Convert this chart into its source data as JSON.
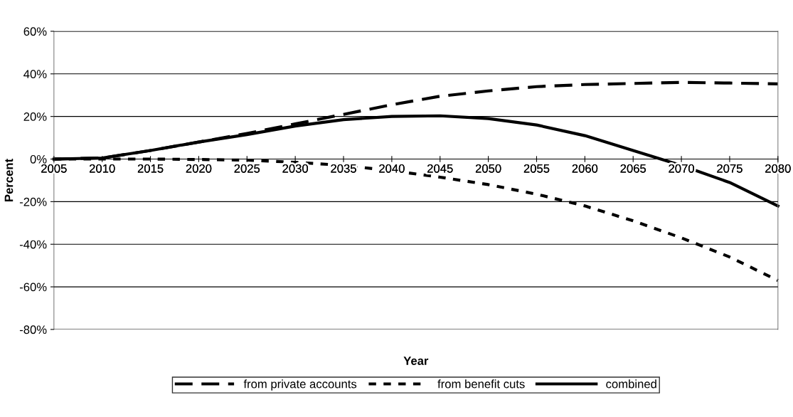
{
  "chart_data": {
    "type": "line",
    "xlabel": "Year",
    "ylabel": "Percent",
    "x": [
      2005,
      2010,
      2015,
      2020,
      2025,
      2030,
      2035,
      2040,
      2045,
      2050,
      2055,
      2060,
      2065,
      2070,
      2075,
      2080
    ],
    "series": [
      {
        "name": "from private accounts",
        "color": "#000000",
        "line_style": "dashed",
        "values": [
          0,
          0.5,
          4,
          8,
          12,
          16.5,
          21,
          25.5,
          29.5,
          32,
          34,
          35,
          35.5,
          36,
          35.7,
          35.3
        ]
      },
      {
        "name": "from benefit cuts",
        "color": "#000000",
        "line_style": "dotted",
        "values": [
          0,
          0,
          0,
          -0.2,
          -0.5,
          -1.5,
          -3,
          -5.5,
          -8.5,
          -12,
          -16.5,
          -22,
          -29,
          -37,
          -46,
          -57
        ]
      },
      {
        "name": "combined",
        "color": "#000000",
        "line_style": "solid",
        "values": [
          0,
          0.5,
          4,
          8,
          11.5,
          15.5,
          18.5,
          20,
          20.3,
          19,
          16,
          11,
          4,
          -3,
          -11,
          -22
        ]
      }
    ],
    "xlim": [
      2005,
      2080
    ],
    "xticks": [
      2005,
      2010,
      2015,
      2020,
      2025,
      2030,
      2035,
      2040,
      2045,
      2050,
      2055,
      2060,
      2065,
      2070,
      2075,
      2080
    ],
    "ylim": [
      -80,
      60
    ],
    "yticks": [
      {
        "value": -80,
        "label": "-80%"
      },
      {
        "value": -60,
        "label": "-60%"
      },
      {
        "value": -40,
        "label": "-40%"
      },
      {
        "value": -20,
        "label": "-20%"
      },
      {
        "value": 0,
        "label": "0%"
      },
      {
        "value": 20,
        "label": "20%"
      },
      {
        "value": 40,
        "label": "40%"
      },
      {
        "value": 60,
        "label": "60%"
      }
    ],
    "grid": "y",
    "legend": "bottom",
    "marker": "none"
  }
}
